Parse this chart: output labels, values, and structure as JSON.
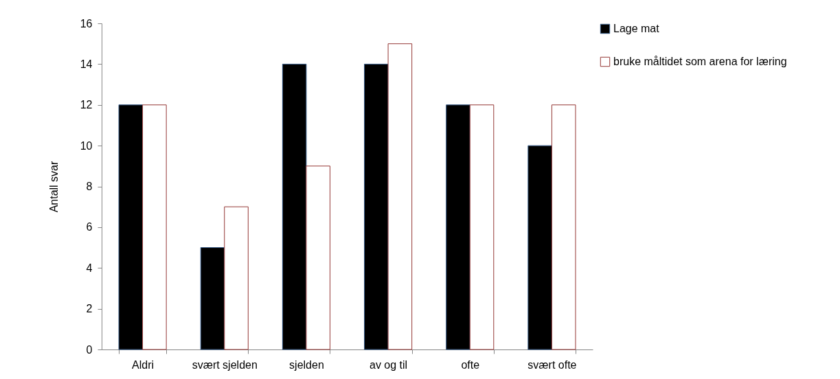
{
  "chart_data": {
    "type": "bar",
    "ylabel": "Antall svar",
    "categories": [
      "Aldri",
      "svært sjelden",
      "sjelden",
      "av og til",
      "ofte",
      "svært ofte"
    ],
    "series": [
      {
        "name": "Lage mat",
        "color": "#000000",
        "values": [
          12,
          5,
          14,
          14,
          12,
          10
        ]
      },
      {
        "name": "bruke måltidet som arena for læring",
        "color": "#ffffff",
        "values": [
          12,
          7,
          9,
          15,
          12,
          12
        ]
      }
    ],
    "ylim": [
      0,
      16
    ],
    "yticks": [
      0,
      2,
      4,
      6,
      8,
      10,
      12,
      14,
      16
    ],
    "grid": false,
    "legend": "right"
  }
}
